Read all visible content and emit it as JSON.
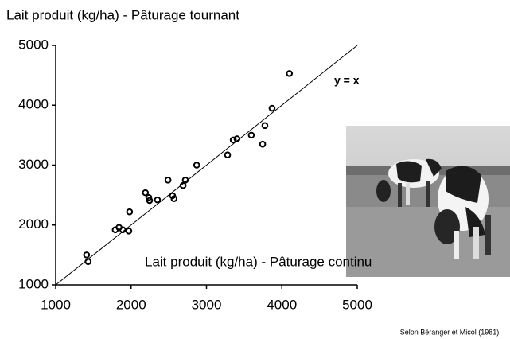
{
  "chart_data": {
    "type": "scatter",
    "title": "Lait produit (kg/ha) - Pâturage tournant",
    "x_label": "Lait produit (kg/ha) - Pâturage continu",
    "annotation": "y = x",
    "source": "Selon Béranger et Micol (1981)",
    "x": [
      1410,
      1430,
      1790,
      1840,
      1890,
      1970,
      1980,
      2190,
      2235,
      2245,
      2350,
      2490,
      2550,
      2570,
      2690,
      2720,
      2870,
      3280,
      3355,
      3405,
      3595,
      3745,
      3775,
      3870,
      4100
    ],
    "values": [
      1500,
      1390,
      1920,
      1960,
      1920,
      1900,
      2220,
      2540,
      2460,
      2410,
      2420,
      2750,
      2490,
      2440,
      2660,
      2750,
      3000,
      3170,
      3420,
      3440,
      3500,
      3350,
      3660,
      3950,
      4530
    ],
    "color": "#000000",
    "xlim": [
      1000,
      5000
    ],
    "ylim": [
      1000,
      5000
    ],
    "xticks": [
      1000,
      2000,
      3000,
      4000,
      5000
    ],
    "yticks": [
      1000,
      2000,
      3000,
      4000,
      5000
    ],
    "reference_line": "y = x"
  }
}
